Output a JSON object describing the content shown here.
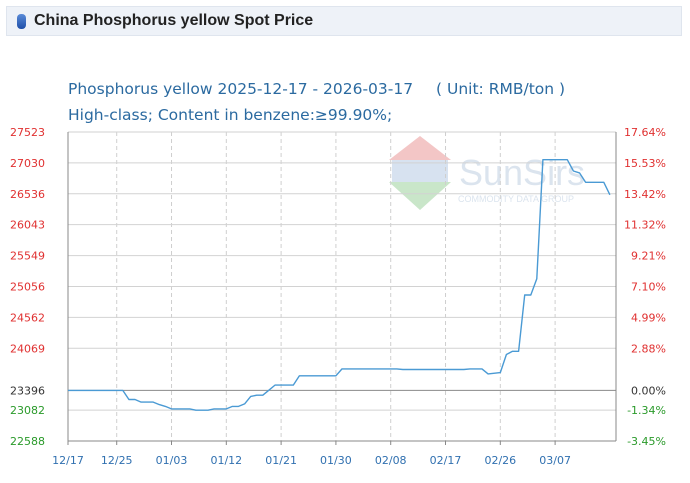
{
  "header": {
    "title": "China Phosphorus yellow Spot Price",
    "icon": "cylinder-icon"
  },
  "chart_data": {
    "type": "line",
    "title_line1": "Phosphorus yellow 2025-12-17 - 2026-03-17",
    "unit": "( Unit: RMB/ton )",
    "title_line2": "High-class; Content in benzene:≥99.90%;",
    "watermark": {
      "name": "SunSirs",
      "sub": "COMMODITY DATA GROUP"
    },
    "base_value": 23396,
    "ylim": [
      22588,
      27523
    ],
    "y_ticks_left": [
      "27523",
      "27030",
      "26536",
      "26043",
      "25549",
      "25056",
      "24562",
      "24069",
      "23396",
      "23082",
      "22588"
    ],
    "y_ticks_left_values": [
      27523,
      27030,
      26536,
      26043,
      25549,
      25056,
      24562,
      24069,
      23396,
      23082,
      22588
    ],
    "y_ticks_right": [
      "17.64%",
      "15.53%",
      "13.42%",
      "11.32%",
      "9.21%",
      "7.10%",
      "4.99%",
      "2.88%",
      "0.00%",
      "-1.34%",
      "-3.45%"
    ],
    "x_ticks": [
      "12/17",
      "12/25",
      "01/03",
      "01/12",
      "01/21",
      "01/30",
      "02/08",
      "02/17",
      "02/26",
      "03/07"
    ],
    "x_tick_dates": [
      "2025-12-17",
      "2025-12-25",
      "2026-01-03",
      "2026-01-12",
      "2026-01-21",
      "2026-01-30",
      "2026-02-08",
      "2026-02-17",
      "2026-02-26",
      "2026-03-07"
    ],
    "xlim": [
      "2025-12-17",
      "2026-03-17"
    ],
    "colors": {
      "line": "#4a9ad4",
      "left_axis": "#e03030",
      "right_axis": "#e03030",
      "x_axis": "#3070b0",
      "title": "#2b6aa0"
    },
    "series": [
      {
        "points": [
          [
            "2025-12-17",
            23396
          ],
          [
            "2025-12-26",
            23396
          ],
          [
            "2025-12-27",
            23250
          ],
          [
            "2025-12-28",
            23250
          ],
          [
            "2025-12-29",
            23210
          ],
          [
            "2025-12-31",
            23210
          ],
          [
            "2026-01-01",
            23170
          ],
          [
            "2026-01-02",
            23140
          ],
          [
            "2026-01-03",
            23100
          ],
          [
            "2026-01-06",
            23100
          ],
          [
            "2026-01-07",
            23080
          ],
          [
            "2026-01-09",
            23080
          ],
          [
            "2026-01-10",
            23100
          ],
          [
            "2026-01-12",
            23100
          ],
          [
            "2026-01-13",
            23140
          ],
          [
            "2026-01-14",
            23140
          ],
          [
            "2026-01-15",
            23180
          ],
          [
            "2026-01-16",
            23300
          ],
          [
            "2026-01-17",
            23320
          ],
          [
            "2026-01-18",
            23320
          ],
          [
            "2026-01-19",
            23400
          ],
          [
            "2026-01-20",
            23480
          ],
          [
            "2026-01-23",
            23480
          ],
          [
            "2026-01-24",
            23630
          ],
          [
            "2026-01-30",
            23630
          ],
          [
            "2026-01-31",
            23740
          ],
          [
            "2026-02-09",
            23740
          ],
          [
            "2026-02-10",
            23730
          ],
          [
            "2026-02-20",
            23730
          ],
          [
            "2026-02-21",
            23740
          ],
          [
            "2026-02-23",
            23740
          ],
          [
            "2026-02-24",
            23660
          ],
          [
            "2026-02-26",
            23680
          ],
          [
            "2026-02-27",
            23970
          ],
          [
            "2026-02-28",
            24020
          ],
          [
            "2026-03-01",
            24020
          ],
          [
            "2026-03-02",
            24920
          ],
          [
            "2026-03-03",
            24920
          ],
          [
            "2026-03-04",
            25180
          ],
          [
            "2026-03-05",
            27080
          ],
          [
            "2026-03-06",
            27080
          ],
          [
            "2026-03-08",
            27080
          ],
          [
            "2026-03-09",
            27080
          ],
          [
            "2026-03-10",
            26900
          ],
          [
            "2026-03-11",
            26870
          ],
          [
            "2026-03-12",
            26720
          ],
          [
            "2026-03-15",
            26720
          ],
          [
            "2026-03-16",
            26520
          ]
        ]
      }
    ]
  }
}
